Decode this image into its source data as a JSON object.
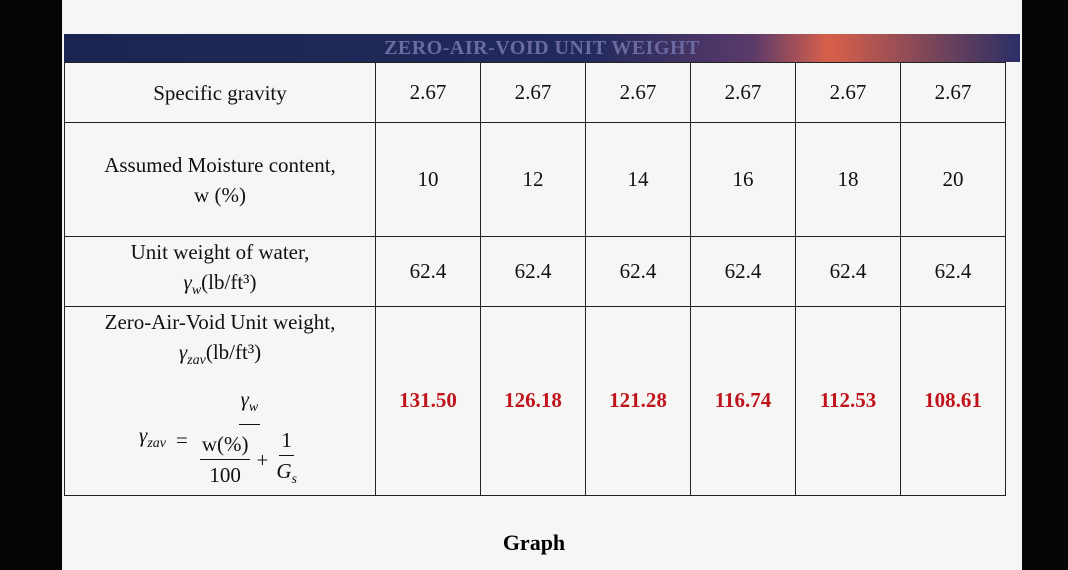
{
  "title": "ZERO-AIR-VOID UNIT WEIGHT",
  "rows": [
    {
      "label": "Specific gravity",
      "values": [
        "2.67",
        "2.67",
        "2.67",
        "2.67",
        "2.67",
        "2.67"
      ]
    },
    {
      "label": "Assumed Moisture content,",
      "label2": "w (%)",
      "values": [
        "10",
        "12",
        "14",
        "16",
        "18",
        "20"
      ]
    },
    {
      "label": "Unit weight of water,",
      "symbol": "γ",
      "sub": "w",
      "unit": "(lb/ft³)",
      "values": [
        "62.4",
        "62.4",
        "62.4",
        "62.4",
        "62.4",
        "62.4"
      ]
    },
    {
      "label": "Zero-Air-Void Unit weight,",
      "symbol": "γ",
      "sub": "zav",
      "unit": "(lb/ft³)",
      "values": [
        "131.50",
        "126.18",
        "121.28",
        "116.74",
        "112.53",
        "108.61"
      ]
    }
  ],
  "formula": {
    "lhs": "γ",
    "lhs_sub": "zav",
    "equals": "=",
    "num": "γ",
    "num_sub": "w",
    "w": "w(%)",
    "hundred": "100",
    "plus": "+",
    "one": "1",
    "gs": "G",
    "gs_sub": "s"
  },
  "footer": "Graph"
}
